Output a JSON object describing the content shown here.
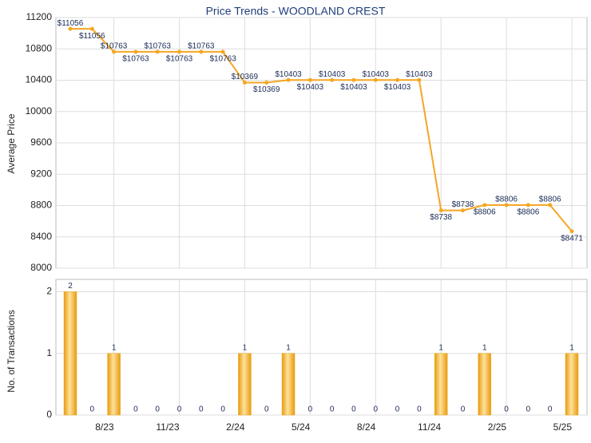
{
  "chart_data": [
    {
      "type": "line",
      "title": "Price Trends - WOODLAND CREST",
      "y_label": "Average Price",
      "color": "#f5a623",
      "values": [
        11056,
        11056,
        10763,
        10763,
        10763,
        10763,
        10763,
        10763,
        10369,
        10369,
        10403,
        10403,
        10403,
        10403,
        10403,
        10403,
        10403,
        8738,
        8738,
        8806,
        8806,
        8806,
        8806,
        8471
      ],
      "value_labels": [
        "$11056",
        "$11056",
        "$10763",
        "$10763",
        "$10763",
        "$10763",
        "$10763",
        "$10763",
        "$10369",
        "$10369",
        "$10403",
        "$10403",
        "$10403",
        "$10403",
        "$10403",
        "$10403",
        "$10403",
        "$8738",
        "$8738",
        "$8806",
        "$8806",
        "$8806",
        "$8806",
        "$8471"
      ],
      "ylim": [
        8000,
        11200
      ],
      "yticks": [
        8000,
        8400,
        8800,
        9200,
        9600,
        10000,
        10400,
        10800,
        11200
      ],
      "grid": true
    },
    {
      "type": "bar",
      "y_label": "No. of Transactions",
      "color": "#f0a818",
      "categories": [
        null,
        null,
        "8/23",
        null,
        null,
        "11/23",
        null,
        null,
        "2/24",
        null,
        null,
        "5/24",
        null,
        null,
        "8/24",
        null,
        null,
        "11/24",
        null,
        null,
        "2/25",
        null,
        null,
        "5/25"
      ],
      "values": [
        2,
        0,
        1,
        0,
        0,
        0,
        0,
        0,
        1,
        0,
        1,
        0,
        0,
        0,
        0,
        0,
        0,
        1,
        0,
        1,
        0,
        0,
        0,
        1
      ],
      "ylim": [
        0,
        2.2
      ],
      "yticks": [
        0,
        1,
        2
      ],
      "grid": true
    }
  ]
}
